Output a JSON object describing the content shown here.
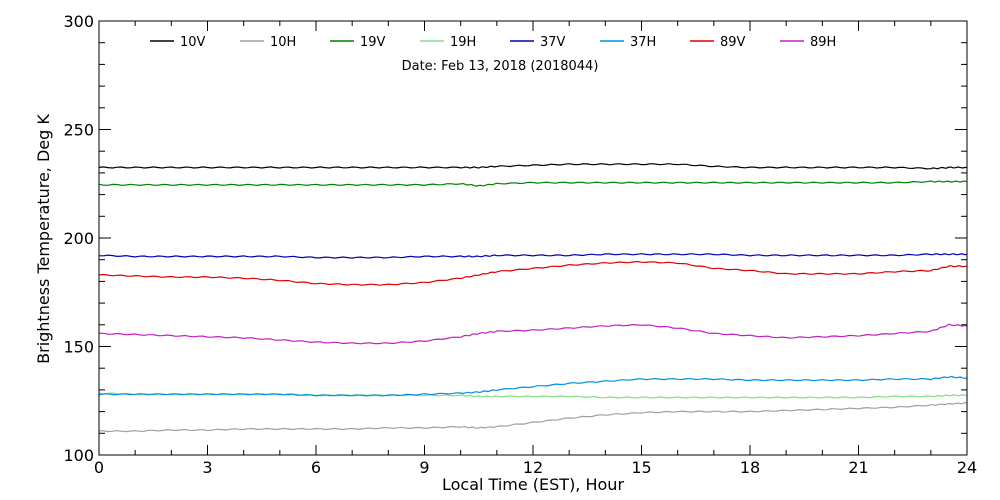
{
  "chart_data": {
    "type": "line",
    "date_label": "Date: Feb 13, 2018 (2018044)",
    "xlabel": "Local Time (EST), Hour",
    "ylabel": "Brightness Temperature, Deg K",
    "xlim": [
      0,
      24
    ],
    "ylim": [
      100,
      300
    ],
    "xticks": [
      0,
      3,
      6,
      9,
      12,
      15,
      18,
      21,
      24
    ],
    "yticks": [
      100,
      150,
      200,
      250,
      300
    ],
    "grid": false,
    "legend_position": "top",
    "x": [
      0,
      1,
      2,
      3,
      4,
      5,
      6,
      7,
      8,
      9,
      10,
      10.5,
      11,
      12,
      13,
      14,
      15,
      16,
      17,
      18,
      19,
      20,
      21,
      22,
      23,
      23.5,
      24
    ],
    "series": [
      {
        "name": "10V",
        "color": "#000000",
        "values": [
          232.5,
          232.5,
          232.5,
          232.5,
          232.5,
          232.5,
          232.5,
          232.5,
          232.5,
          232.5,
          232.5,
          232.5,
          233,
          233.5,
          234,
          234,
          234,
          234,
          233,
          232.5,
          232.5,
          232.5,
          232.5,
          232.5,
          232,
          232.5,
          232.5
        ]
      },
      {
        "name": "10H",
        "color": "#a0a0a0",
        "values": [
          111,
          111,
          111.5,
          111.5,
          112,
          112,
          112,
          112,
          112.5,
          112.5,
          113,
          112.5,
          113,
          115,
          117,
          118.5,
          119.5,
          120,
          120,
          120,
          120.5,
          121,
          121.5,
          122,
          123,
          123.5,
          124
        ]
      },
      {
        "name": "19V",
        "color": "#008000",
        "values": [
          224.5,
          224.5,
          224.5,
          224.5,
          224.5,
          224.5,
          224.5,
          224.5,
          224.5,
          224.5,
          225,
          224,
          225,
          225.5,
          225.5,
          225.5,
          225.5,
          225.5,
          225.5,
          225.5,
          225.5,
          225.5,
          225.5,
          225.5,
          226,
          226,
          226
        ]
      },
      {
        "name": "19H",
        "color": "#80e080",
        "values": [
          128.5,
          128,
          128,
          128,
          128,
          128,
          127.5,
          127.5,
          127.5,
          127.5,
          127.5,
          127,
          127,
          127,
          127,
          126.5,
          126.5,
          126.5,
          126.5,
          126.5,
          126.5,
          126.5,
          126.5,
          127,
          127,
          127.5,
          127.5
        ]
      },
      {
        "name": "37V",
        "color": "#0000b0",
        "values": [
          192,
          191.5,
          191.5,
          191.5,
          191.5,
          191.5,
          191,
          191,
          191,
          191.5,
          191.5,
          191.5,
          192,
          192,
          192,
          192.5,
          192.5,
          192.5,
          192.5,
          192,
          192,
          192,
          192,
          192,
          192.5,
          192.5,
          192.5
        ]
      },
      {
        "name": "37H",
        "color": "#0090e0",
        "values": [
          128,
          128,
          128,
          128,
          128,
          128,
          127.5,
          127.5,
          127.5,
          128,
          128.5,
          129,
          130,
          131.5,
          133,
          134,
          135,
          135,
          135,
          134.5,
          134.5,
          134.5,
          134.5,
          135,
          135,
          136,
          135.5
        ]
      },
      {
        "name": "89V",
        "color": "#e00000",
        "values": [
          183,
          182.5,
          182,
          182,
          181.5,
          180.5,
          179,
          178.5,
          178.5,
          179.5,
          181.5,
          183,
          184.5,
          186,
          187.5,
          188.5,
          189,
          188.5,
          186,
          185,
          183.5,
          183.5,
          183.5,
          184.5,
          185,
          187,
          187
        ]
      },
      {
        "name": "89H",
        "color": "#c020c0",
        "values": [
          156,
          155.5,
          155,
          154.5,
          154,
          153,
          152,
          151.5,
          151.5,
          152.5,
          154.5,
          156,
          157,
          157.5,
          158.5,
          159.5,
          160,
          158.5,
          156,
          155,
          154,
          154.5,
          155,
          156,
          157,
          160,
          159.5
        ]
      }
    ]
  }
}
